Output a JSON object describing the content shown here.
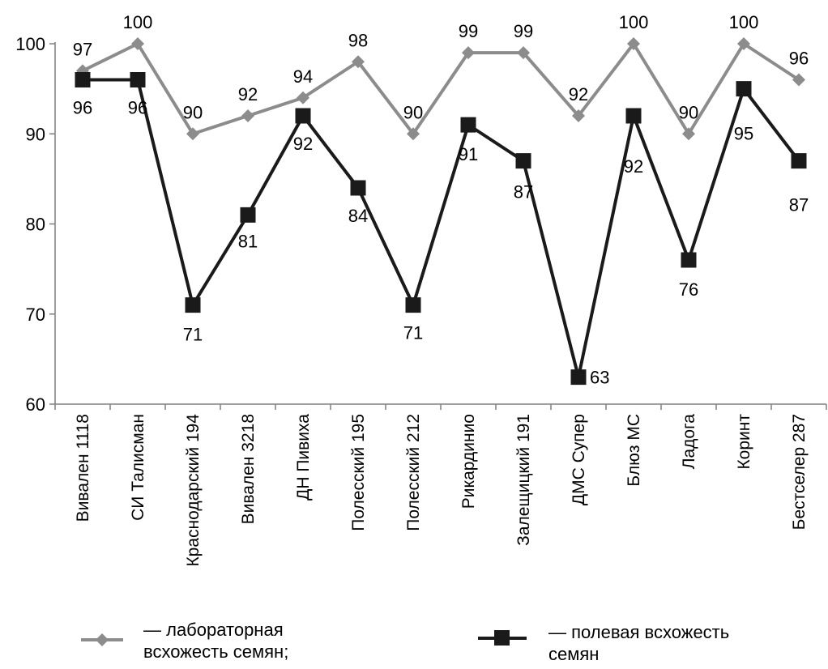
{
  "chart_data": {
    "type": "line",
    "title": "",
    "xlabel": "",
    "ylabel": "",
    "ylim": [
      60,
      100
    ],
    "yticks": [
      60,
      70,
      80,
      90,
      100
    ],
    "grid": false,
    "legend_position": "bottom",
    "categories": [
      "Вивален 1118",
      "СИ Талисман",
      "Краснодарский 194",
      "Вивален 3218",
      "ДН Пивиха",
      "Полесский  195",
      "Полесский 212",
      "Рикардинио",
      "Залещицкий 191",
      "ДМС Супер",
      "Блюз МС",
      "Ладога",
      "Коринт",
      "Бестселер 287"
    ],
    "series": [
      {
        "name": "— лабораторная всхожесть семян;",
        "name_lines": [
          "— лабораторная",
          "всхожесть семян;"
        ],
        "color": "#8c8c8c",
        "marker": "diamond",
        "values": [
          97,
          100,
          90,
          92,
          94,
          98,
          90,
          99,
          99,
          92,
          100,
          90,
          100,
          96
        ]
      },
      {
        "name": "— полевая всхожесть семян",
        "name_lines": [
          "— полевая всхожесть",
          "семян"
        ],
        "color": "#1a1a1a",
        "marker": "square",
        "values": [
          96,
          96,
          71,
          81,
          92,
          84,
          71,
          91,
          87,
          63,
          92,
          76,
          95,
          87
        ]
      }
    ]
  }
}
